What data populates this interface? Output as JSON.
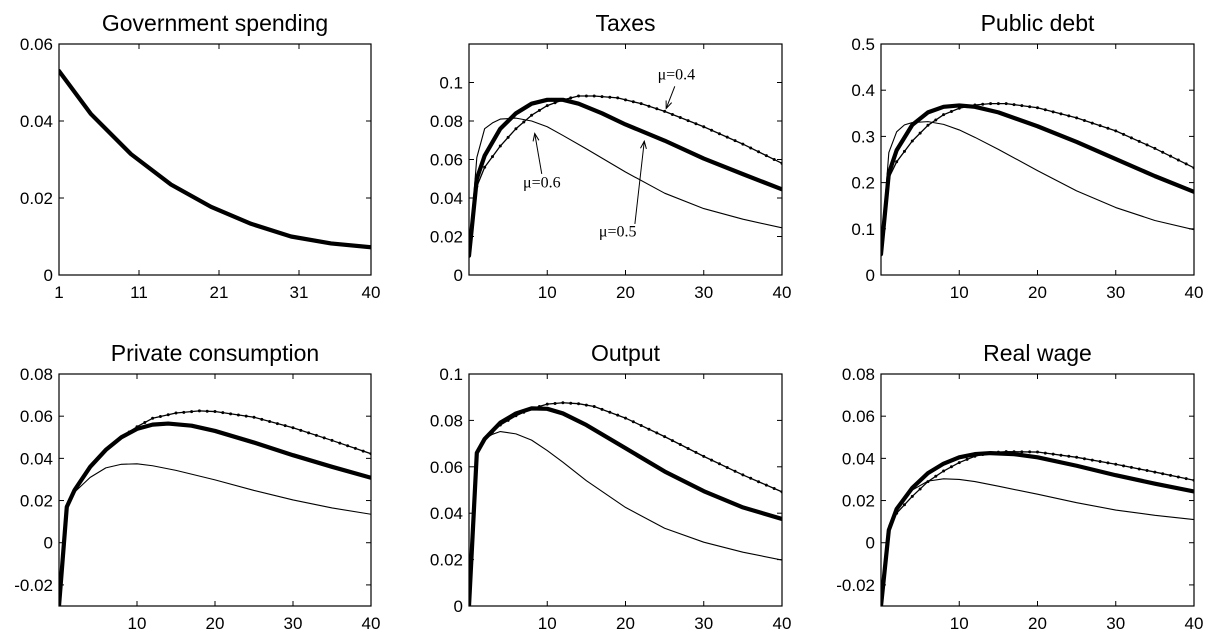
{
  "figure": {
    "line_styles": {
      "mu_0.5": "thick solid",
      "mu_0.4": "thin dotted with markers",
      "mu_0.6": "thin solid"
    }
  },
  "chart_data": [
    {
      "type": "line",
      "title": "Government spending",
      "xlim": [
        1,
        40
      ],
      "ylim": [
        0,
        0.06
      ],
      "xticks": [
        1,
        11,
        21,
        31,
        40
      ],
      "xtick_labels": [
        "1",
        "11",
        "21",
        "31",
        "40"
      ],
      "yticks": [
        0,
        0.02,
        0.04,
        0.06
      ],
      "ytick_labels": [
        "0",
        "0.02",
        "0.04",
        "0.06"
      ],
      "annotations": [],
      "series": [
        {
          "key": "g",
          "style": "thick",
          "x": [
            1,
            5,
            10,
            15,
            20,
            25,
            30,
            35,
            40
          ],
          "y": [
            0.053,
            0.0418,
            0.0314,
            0.0235,
            0.0177,
            0.0133,
            0.01,
            0.0082,
            0.0072
          ]
        }
      ]
    },
    {
      "type": "line",
      "title": "Taxes",
      "xlim": [
        0,
        40
      ],
      "ylim": [
        0,
        0.12
      ],
      "xticks": [
        10,
        20,
        30,
        40
      ],
      "xtick_labels": [
        "10",
        "20",
        "30",
        "40"
      ],
      "yticks": [
        0,
        0.02,
        0.04,
        0.06,
        0.08,
        0.1
      ],
      "ytick_labels": [
        "0",
        "0.02",
        "0.04",
        "0.06",
        "0.08",
        "0.1"
      ],
      "annotations": [
        {
          "text": "μ=0.4",
          "x": 24.1,
          "y": 0.1015,
          "arrow": [
            [
              26.3,
              0.098
            ],
            [
              25.2,
              0.0865
            ]
          ]
        },
        {
          "text": "μ=0.6",
          "x": 6.9,
          "y": 0.0455,
          "arrow": [
            [
              9.3,
              0.0525
            ],
            [
              8.4,
              0.0735
            ]
          ]
        },
        {
          "text": "μ=0.5",
          "x": 16.6,
          "y": 0.02,
          "arrow": [
            [
              21.2,
              0.0265
            ],
            [
              22.4,
              0.0695
            ]
          ]
        }
      ],
      "series": [
        {
          "key": "mu_0.5",
          "style": "thick",
          "x": [
            0,
            1,
            2,
            4,
            6,
            8,
            10,
            12,
            14,
            17,
            20,
            25,
            30,
            35,
            40
          ],
          "y": [
            0.01,
            0.05,
            0.062,
            0.076,
            0.084,
            0.089,
            0.091,
            0.091,
            0.089,
            0.084,
            0.0782,
            0.0698,
            0.0605,
            0.0524,
            0.0445
          ]
        },
        {
          "key": "mu_0.4",
          "style": "dotted",
          "x": [
            0,
            1,
            2,
            4,
            6,
            8,
            10,
            12,
            14,
            16,
            19,
            22,
            25,
            30,
            35,
            40
          ],
          "y": [
            0.01,
            0.046,
            0.056,
            0.067,
            0.076,
            0.083,
            0.088,
            0.091,
            0.093,
            0.093,
            0.092,
            0.089,
            0.085,
            0.077,
            0.068,
            0.058
          ]
        },
        {
          "key": "mu_0.6",
          "style": "thin",
          "x": [
            0,
            1,
            2,
            3,
            4,
            6,
            8,
            10,
            12,
            15,
            20,
            25,
            30,
            35,
            40
          ],
          "y": [
            0.01,
            0.061,
            0.076,
            0.079,
            0.081,
            0.0815,
            0.08,
            0.077,
            0.0725,
            0.0655,
            0.0535,
            0.0425,
            0.0345,
            0.029,
            0.0245
          ]
        }
      ]
    },
    {
      "type": "line",
      "title": "Public debt",
      "xlim": [
        0,
        40
      ],
      "ylim": [
        0,
        0.5
      ],
      "xticks": [
        10,
        20,
        30,
        40
      ],
      "xtick_labels": [
        "10",
        "20",
        "30",
        "40"
      ],
      "yticks": [
        0,
        0.1,
        0.2,
        0.3,
        0.4,
        0.5
      ],
      "ytick_labels": [
        "0",
        "0.1",
        "0.2",
        "0.3",
        "0.4",
        "0.5"
      ],
      "annotations": [],
      "series": [
        {
          "key": "mu_0.5",
          "style": "thick",
          "x": [
            0,
            1,
            2,
            4,
            6,
            8,
            10,
            12,
            15,
            20,
            25,
            30,
            35,
            40
          ],
          "y": [
            0.045,
            0.22,
            0.27,
            0.325,
            0.352,
            0.364,
            0.367,
            0.364,
            0.352,
            0.322,
            0.288,
            0.251,
            0.214,
            0.18
          ]
        },
        {
          "key": "mu_0.4",
          "style": "dotted",
          "x": [
            0,
            1,
            2,
            4,
            6,
            8,
            10,
            12,
            14,
            16,
            20,
            25,
            30,
            35,
            40
          ],
          "y": [
            0.045,
            0.21,
            0.245,
            0.29,
            0.324,
            0.347,
            0.361,
            0.368,
            0.371,
            0.371,
            0.362,
            0.34,
            0.312,
            0.274,
            0.232
          ]
        },
        {
          "key": "mu_0.6",
          "style": "thin",
          "x": [
            0,
            1,
            2,
            3,
            4,
            6,
            8,
            10,
            12,
            15,
            20,
            25,
            30,
            35,
            40
          ],
          "y": [
            0.045,
            0.265,
            0.31,
            0.325,
            0.33,
            0.332,
            0.326,
            0.314,
            0.298,
            0.272,
            0.226,
            0.182,
            0.146,
            0.118,
            0.098
          ]
        }
      ]
    },
    {
      "type": "line",
      "title": "Private consumption",
      "xlim": [
        0,
        40
      ],
      "ylim": [
        -0.03,
        0.08
      ],
      "xticks": [
        10,
        20,
        30,
        40
      ],
      "xtick_labels": [
        "10",
        "20",
        "30",
        "40"
      ],
      "yticks": [
        -0.02,
        0,
        0.02,
        0.04,
        0.06,
        0.08
      ],
      "ytick_labels": [
        "-0.02",
        "0",
        "0.02",
        "0.04",
        "0.06",
        "0.08"
      ],
      "annotations": [],
      "series": [
        {
          "key": "mu_0.5",
          "style": "thick",
          "x": [
            0,
            1,
            2,
            4,
            6,
            8,
            10,
            12,
            14,
            17,
            20,
            25,
            30,
            35,
            40
          ],
          "y": [
            -0.03,
            0.017,
            0.025,
            0.036,
            0.044,
            0.05,
            0.054,
            0.056,
            0.0565,
            0.0555,
            0.053,
            0.0475,
            0.0415,
            0.036,
            0.0308
          ]
        },
        {
          "key": "mu_0.4",
          "style": "dotted",
          "x": [
            0,
            1,
            2,
            4,
            6,
            8,
            10,
            12,
            15,
            18,
            20,
            25,
            30,
            35,
            40
          ],
          "y": [
            -0.03,
            0.017,
            0.025,
            0.036,
            0.044,
            0.05,
            0.055,
            0.059,
            0.0615,
            0.0625,
            0.0622,
            0.0595,
            0.0545,
            0.0485,
            0.0422
          ]
        },
        {
          "key": "mu_0.6",
          "style": "thin",
          "x": [
            0,
            1,
            2,
            4,
            6,
            8,
            10,
            12,
            15,
            20,
            25,
            30,
            35,
            40
          ],
          "y": [
            -0.03,
            0.017,
            0.024,
            0.031,
            0.0355,
            0.0372,
            0.0374,
            0.0365,
            0.0343,
            0.0298,
            0.0248,
            0.0203,
            0.0165,
            0.0135
          ]
        }
      ]
    },
    {
      "type": "line",
      "title": "Output",
      "xlim": [
        0,
        40
      ],
      "ylim": [
        0,
        0.1
      ],
      "xticks": [
        10,
        20,
        30,
        40
      ],
      "xtick_labels": [
        "10",
        "20",
        "30",
        "40"
      ],
      "yticks": [
        0,
        0.02,
        0.04,
        0.06,
        0.08,
        0.1
      ],
      "ytick_labels": [
        "0",
        "0.02",
        "0.04",
        "0.06",
        "0.08",
        "0.1"
      ],
      "annotations": [],
      "series": [
        {
          "key": "mu_0.5",
          "style": "thick",
          "x": [
            0,
            1,
            2,
            4,
            6,
            8,
            10,
            12,
            15,
            20,
            25,
            30,
            35,
            40
          ],
          "y": [
            0,
            0.066,
            0.072,
            0.079,
            0.083,
            0.0852,
            0.085,
            0.083,
            0.078,
            0.068,
            0.058,
            0.0495,
            0.0425,
            0.0375
          ]
        },
        {
          "key": "mu_0.4",
          "style": "dotted",
          "x": [
            0,
            1,
            2,
            4,
            6,
            8,
            10,
            12,
            14,
            16,
            20,
            25,
            30,
            35,
            40
          ],
          "y": [
            0,
            0.066,
            0.072,
            0.078,
            0.082,
            0.085,
            0.087,
            0.0876,
            0.0872,
            0.086,
            0.081,
            0.073,
            0.0645,
            0.0565,
            0.0492
          ]
        },
        {
          "key": "mu_0.6",
          "style": "thin",
          "x": [
            0,
            1,
            2,
            3,
            4,
            6,
            8,
            10,
            12,
            15,
            20,
            25,
            30,
            35,
            40
          ],
          "y": [
            0,
            0.066,
            0.072,
            0.074,
            0.0752,
            0.0742,
            0.0715,
            0.067,
            0.062,
            0.054,
            0.0425,
            0.0335,
            0.0275,
            0.0232,
            0.0198
          ]
        }
      ]
    },
    {
      "type": "line",
      "title": "Real wage",
      "xlim": [
        0,
        40
      ],
      "ylim": [
        -0.03,
        0.08
      ],
      "xticks": [
        10,
        20,
        30,
        40
      ],
      "xtick_labels": [
        "10",
        "20",
        "30",
        "40"
      ],
      "yticks": [
        -0.02,
        0,
        0.02,
        0.04,
        0.06,
        0.08
      ],
      "ytick_labels": [
        "-0.02",
        "0",
        "0.02",
        "0.04",
        "0.06",
        "0.08"
      ],
      "annotations": [],
      "series": [
        {
          "key": "mu_0.5",
          "style": "thick",
          "x": [
            0,
            1,
            2,
            4,
            6,
            8,
            10,
            12,
            14,
            17,
            20,
            25,
            30,
            35,
            40
          ],
          "y": [
            -0.03,
            0.006,
            0.016,
            0.026,
            0.033,
            0.0375,
            0.0405,
            0.042,
            0.0425,
            0.042,
            0.0405,
            0.0365,
            0.032,
            0.028,
            0.0243
          ]
        },
        {
          "key": "mu_0.4",
          "style": "dotted",
          "x": [
            0,
            1,
            2,
            4,
            6,
            8,
            10,
            12,
            14,
            16,
            20,
            25,
            30,
            35,
            40
          ],
          "y": [
            -0.03,
            0.006,
            0.014,
            0.022,
            0.029,
            0.034,
            0.038,
            0.041,
            0.0427,
            0.0432,
            0.043,
            0.0405,
            0.0372,
            0.0335,
            0.0296
          ]
        },
        {
          "key": "mu_0.6",
          "style": "thin",
          "x": [
            0,
            1,
            2,
            4,
            6,
            8,
            10,
            12,
            15,
            20,
            25,
            30,
            35,
            40
          ],
          "y": [
            -0.03,
            0.008,
            0.017,
            0.025,
            0.0292,
            0.0303,
            0.03,
            0.029,
            0.0268,
            0.023,
            0.019,
            0.0155,
            0.013,
            0.011
          ]
        }
      ]
    }
  ]
}
